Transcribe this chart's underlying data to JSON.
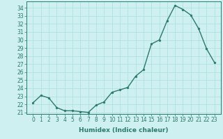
{
  "title": "",
  "xlabel": "Humidex (Indice chaleur)",
  "x_values": [
    0,
    1,
    2,
    3,
    4,
    5,
    6,
    7,
    8,
    9,
    10,
    11,
    12,
    13,
    14,
    15,
    16,
    17,
    18,
    19,
    20,
    21,
    22,
    23
  ],
  "y_values": [
    22.2,
    23.1,
    22.8,
    21.6,
    21.2,
    21.2,
    21.1,
    21.0,
    21.9,
    22.3,
    23.5,
    23.8,
    24.1,
    25.5,
    26.3,
    29.5,
    30.0,
    32.4,
    34.3,
    33.8,
    33.1,
    31.4,
    28.9,
    27.2
  ],
  "ylim": [
    20.8,
    34.8
  ],
  "yticks": [
    21,
    22,
    23,
    24,
    25,
    26,
    27,
    28,
    29,
    30,
    31,
    32,
    33,
    34
  ],
  "bg_color": "#cff0f0",
  "grid_color": "#aadcdc",
  "line_color": "#2a7a6a",
  "marker_color": "#2a7a6a",
  "line_width": 1.0,
  "marker_size": 2.0,
  "label_fontsize": 6.5,
  "tick_fontsize": 5.5
}
